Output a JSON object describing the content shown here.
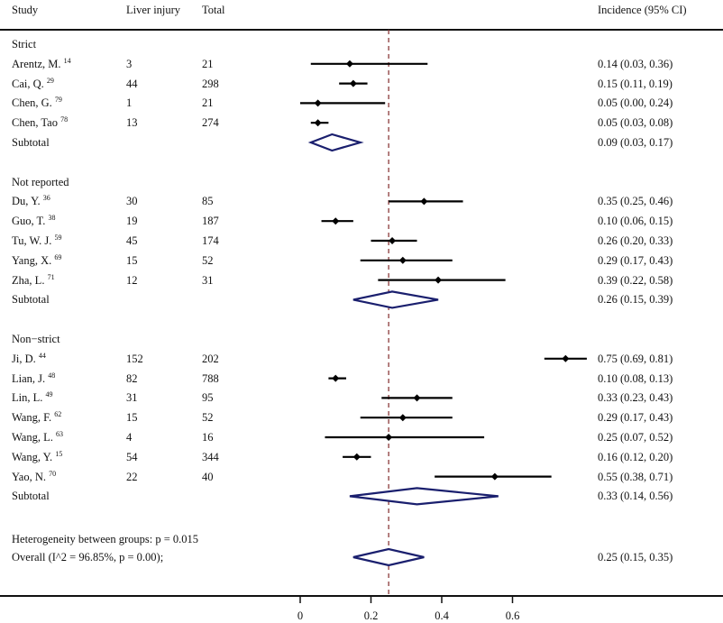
{
  "chart_data": {
    "type": "forest",
    "xlabel": "",
    "xlim": [
      0,
      0.6
    ],
    "x_ticks": [
      0,
      0.2,
      0.4,
      0.6
    ],
    "x_tick_labels": [
      "0",
      "0.2",
      "0.4",
      "0.6"
    ],
    "reference_line": 0.25,
    "headers": {
      "study": "Study",
      "events": "Liver injury",
      "total": "Total",
      "estimate": "Incidence (95% CI)"
    },
    "groups": [
      {
        "name": "Strict",
        "studies": [
          {
            "study": "Arentz, M.",
            "ref": "14",
            "events": "3",
            "total": "21",
            "est": 0.14,
            "lo": 0.03,
            "hi": 0.36,
            "label": "0.14 (0.03, 0.36)"
          },
          {
            "study": "Cai, Q.",
            "ref": "29",
            "events": "44",
            "total": "298",
            "est": 0.15,
            "lo": 0.11,
            "hi": 0.19,
            "label": "0.15 (0.11, 0.19)"
          },
          {
            "study": "Chen, G.",
            "ref": "79",
            "events": "1",
            "total": "21",
            "est": 0.05,
            "lo": 0.0,
            "hi": 0.24,
            "label": "0.05 (0.00, 0.24)"
          },
          {
            "study": "Chen, Tao",
            "ref": "78",
            "events": "13",
            "total": "274",
            "est": 0.05,
            "lo": 0.03,
            "hi": 0.08,
            "label": "0.05 (0.03, 0.08)"
          }
        ],
        "subtotal": {
          "label_text": "Subtotal",
          "est": 0.09,
          "lo": 0.03,
          "hi": 0.17,
          "label": "0.09 (0.03, 0.17)"
        }
      },
      {
        "name": "Not reported",
        "studies": [
          {
            "study": "Du, Y.",
            "ref": "36",
            "events": "30",
            "total": "85",
            "est": 0.35,
            "lo": 0.25,
            "hi": 0.46,
            "label": "0.35 (0.25, 0.46)"
          },
          {
            "study": "Guo, T.",
            "ref": "38",
            "events": "19",
            "total": "187",
            "est": 0.1,
            "lo": 0.06,
            "hi": 0.15,
            "label": "0.10 (0.06, 0.15)"
          },
          {
            "study": "Tu, W. J.",
            "ref": "59",
            "events": "45",
            "total": "174",
            "est": 0.26,
            "lo": 0.2,
            "hi": 0.33,
            "label": "0.26 (0.20, 0.33)"
          },
          {
            "study": "Yang, X.",
            "ref": "69",
            "events": "15",
            "total": "52",
            "est": 0.29,
            "lo": 0.17,
            "hi": 0.43,
            "label": "0.29 (0.17, 0.43)"
          },
          {
            "study": "Zha, L.",
            "ref": "71",
            "events": "12",
            "total": "31",
            "est": 0.39,
            "lo": 0.22,
            "hi": 0.58,
            "label": "0.39 (0.22, 0.58)"
          }
        ],
        "subtotal": {
          "label_text": "Subtotal",
          "est": 0.26,
          "lo": 0.15,
          "hi": 0.39,
          "label": "0.26 (0.15, 0.39)"
        }
      },
      {
        "name": "Non−strict",
        "studies": [
          {
            "study": "Ji, D.",
            "ref": "44",
            "events": "152",
            "total": "202",
            "est": 0.75,
            "lo": 0.69,
            "hi": 0.81,
            "label": "0.75 (0.69, 0.81)"
          },
          {
            "study": "Lian, J.",
            "ref": "48",
            "events": "82",
            "total": "788",
            "est": 0.1,
            "lo": 0.08,
            "hi": 0.13,
            "label": "0.10 (0.08, 0.13)"
          },
          {
            "study": "Lin, L.",
            "ref": "49",
            "events": "31",
            "total": "95",
            "est": 0.33,
            "lo": 0.23,
            "hi": 0.43,
            "label": "0.33 (0.23, 0.43)"
          },
          {
            "study": "Wang, F.",
            "ref": "62",
            "events": "15",
            "total": "52",
            "est": 0.29,
            "lo": 0.17,
            "hi": 0.43,
            "label": "0.29 (0.17, 0.43)"
          },
          {
            "study": "Wang, L.",
            "ref": "63",
            "events": "4",
            "total": "16",
            "est": 0.25,
            "lo": 0.07,
            "hi": 0.52,
            "label": "0.25 (0.07, 0.52)"
          },
          {
            "study": "Wang, Y.",
            "ref": "15",
            "events": "54",
            "total": "344",
            "est": 0.16,
            "lo": 0.12,
            "hi": 0.2,
            "label": "0.16 (0.12, 0.20)"
          },
          {
            "study": "Yao, N.",
            "ref": "70",
            "events": "22",
            "total": "40",
            "est": 0.55,
            "lo": 0.38,
            "hi": 0.71,
            "label": "0.55 (0.38, 0.71)"
          }
        ],
        "subtotal": {
          "label_text": "Subtotal",
          "est": 0.33,
          "lo": 0.14,
          "hi": 0.56,
          "label": "0.33 (0.14, 0.56)"
        }
      }
    ],
    "heterogeneity_text": "Heterogeneity between groups: p = 0.015",
    "overall": {
      "label_text": "Overall  (I^2 = 96.85%, p = 0.00);",
      "est": 0.25,
      "lo": 0.15,
      "hi": 0.35,
      "label": "0.25 (0.15, 0.35)"
    },
    "colors": {
      "point": "#000000",
      "ci_line": "#000000",
      "diamond": "#1a1f6e",
      "reference_line": "#8b3a3a",
      "text": "#111111"
    }
  }
}
